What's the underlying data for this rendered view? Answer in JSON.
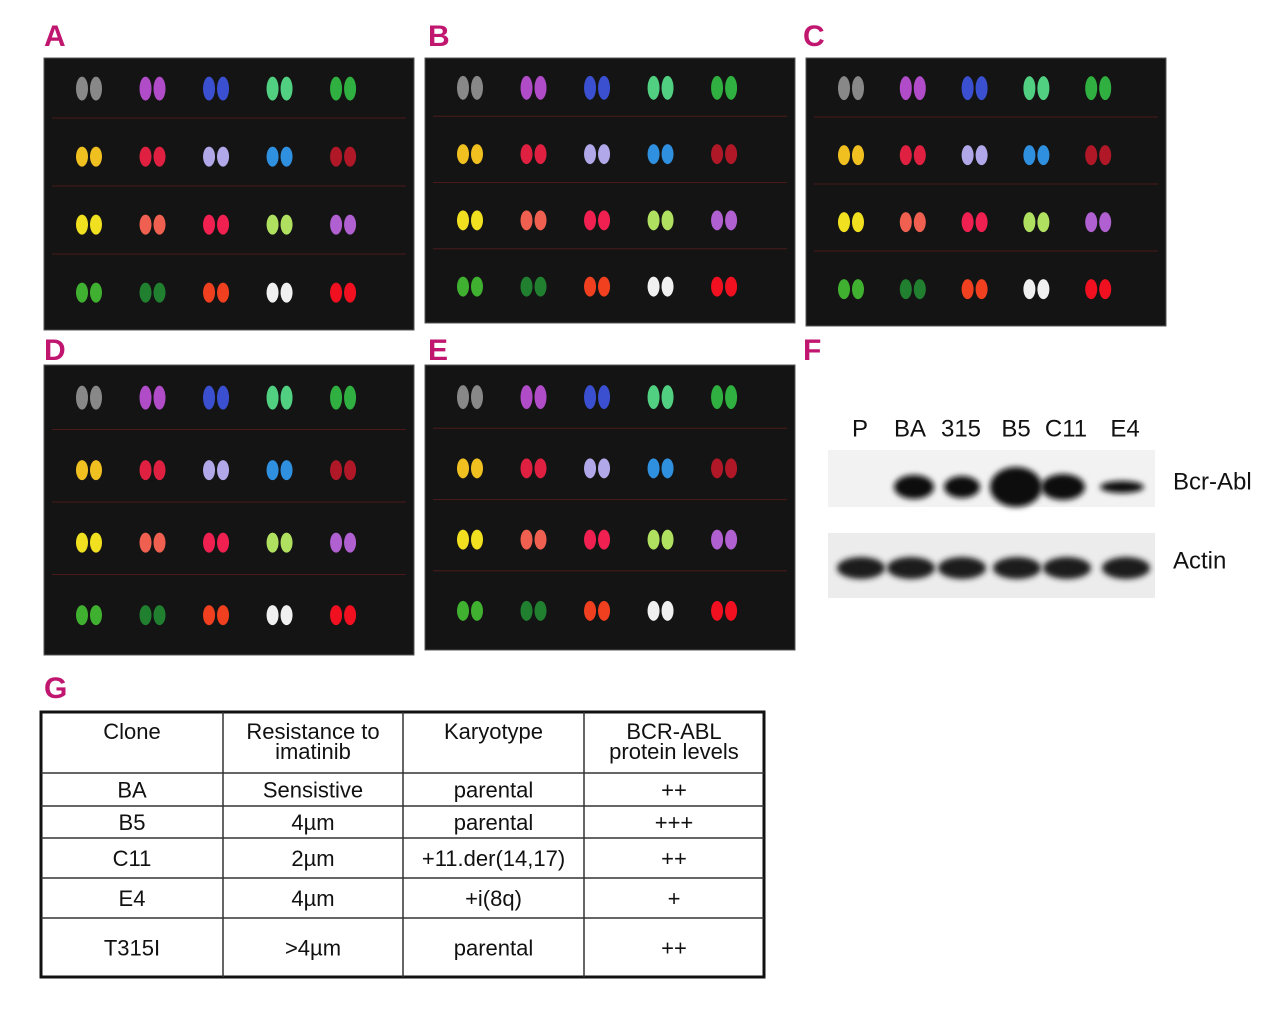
{
  "panels": {
    "labels": [
      "A",
      "B",
      "C",
      "D",
      "E",
      "F",
      "G"
    ]
  },
  "blot": {
    "lanes": [
      "P",
      "BA",
      "315",
      "B5",
      "C11",
      "E4"
    ],
    "bands": [
      "Bcr-Abl",
      "Actin"
    ]
  },
  "table": {
    "header": [
      "Clone",
      "Resistance to imatinib",
      "Karyotype",
      "BCR-ABL protein levels"
    ],
    "rows": [
      [
        "BA",
        "Sensistive",
        "parental",
        "++"
      ],
      [
        "B5",
        "4µm",
        "parental",
        "+++"
      ],
      [
        "C11",
        "2µm",
        "+11.der(14,17)",
        "++"
      ],
      [
        "E4",
        "4µm",
        "+i(8q)",
        "+"
      ],
      [
        "T315I",
        ">4µm",
        "parental",
        "++"
      ]
    ]
  }
}
